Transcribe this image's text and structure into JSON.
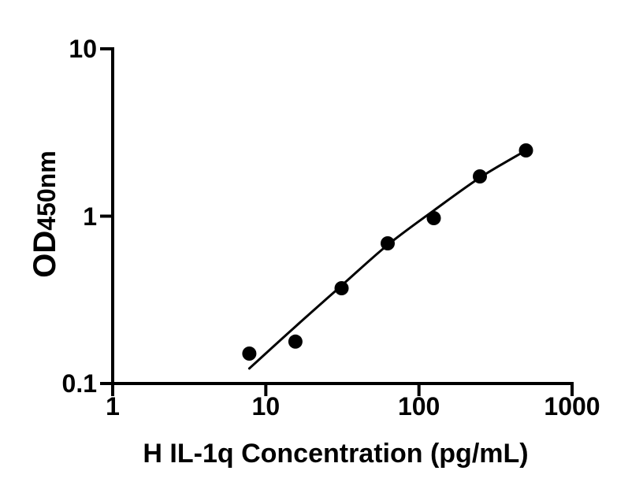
{
  "chart_data": {
    "type": "scatter",
    "title": "",
    "xlabel": "H IL-1q Concentration (pg/mL)",
    "ylabel": "OD450nm",
    "ylabel_main": "OD",
    "ylabel_sub": "450nm",
    "x_scale": "log10",
    "y_scale": "log10",
    "xlim": [
      1,
      1000
    ],
    "ylim": [
      0.1,
      10
    ],
    "x_ticks": [
      {
        "value": 1,
        "label": "1"
      },
      {
        "value": 10,
        "label": "10"
      },
      {
        "value": 100,
        "label": "100"
      },
      {
        "value": 1000,
        "label": "1000"
      }
    ],
    "y_ticks": [
      {
        "value": 10,
        "label": "10"
      },
      {
        "value": 1,
        "label": "1"
      },
      {
        "value": 0.1,
        "label": "0.1"
      }
    ],
    "grid": false,
    "legend": false,
    "background_color": "#ffffff",
    "axis_color": "#000000",
    "series": [
      {
        "name": "standard-data-points",
        "type": "scatter",
        "marker": "filled-circle",
        "color": "#000000",
        "x": [
          7.8,
          15.6,
          31.25,
          62.5,
          125,
          250,
          500
        ],
        "y": [
          0.151,
          0.178,
          0.371,
          0.688,
          0.973,
          1.728,
          2.471
        ]
      },
      {
        "name": "fitted-standard-curve",
        "type": "line",
        "color": "#000000",
        "x": [
          7.8,
          15.6,
          31.25,
          62.5,
          125,
          250,
          500
        ],
        "y": [
          0.123,
          0.219,
          0.385,
          0.673,
          1.081,
          1.698,
          2.471
        ]
      }
    ]
  }
}
